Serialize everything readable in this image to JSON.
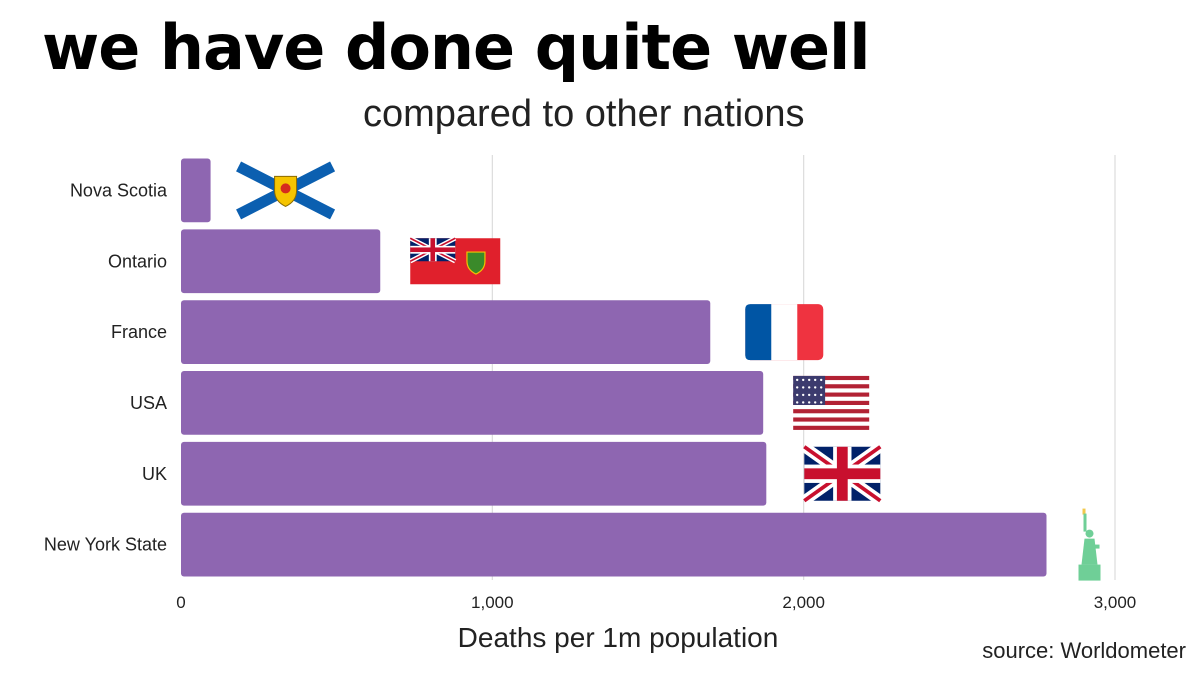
{
  "title": "we have done quite well",
  "subtitle": "compared to other nations",
  "source": "source: Worldometer",
  "chart_data": {
    "type": "bar",
    "orientation": "horizontal",
    "categories": [
      "Nova Scotia",
      "Ontario",
      "France",
      "USA",
      "UK",
      "New York State"
    ],
    "values": [
      95,
      640,
      1700,
      1870,
      1880,
      2780
    ],
    "xlabel": "Deaths per 1m population",
    "ylabel": "",
    "xlim": [
      0,
      3000
    ],
    "xticks": [
      0,
      1000,
      2000,
      3000
    ],
    "xtick_labels": [
      "0",
      "1,000",
      "2,000",
      "3,000"
    ],
    "grid": "vertical",
    "bar_color": "#8e66b1",
    "icons": [
      "nova-scotia-flag-icon",
      "ontario-flag-icon",
      "france-flag-icon",
      "usa-flag-icon",
      "uk-flag-icon",
      "statue-of-liberty-icon"
    ]
  }
}
